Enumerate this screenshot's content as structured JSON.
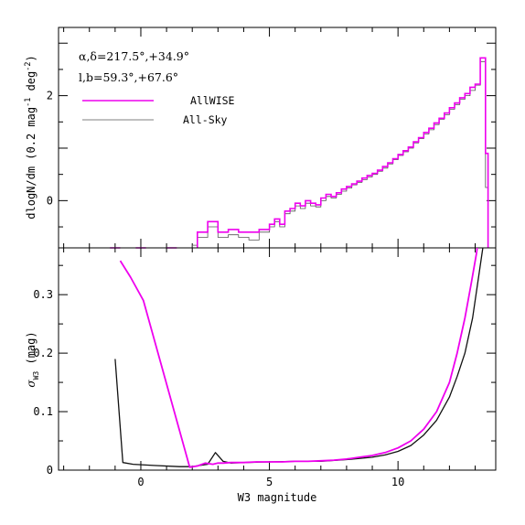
{
  "chart_data": [
    {
      "type": "line",
      "panel": "top",
      "step": true,
      "xlim": [
        -3.2,
        13.8
      ],
      "ylim": [
        -0.9,
        3.3
      ],
      "yticks_major": [
        0,
        2
      ],
      "ylabel_parts": [
        "dlogN/dm (0.2 mag",
        "-1",
        " deg",
        "-2",
        ")"
      ],
      "annotations": [
        "α,δ=217.5°,+34.9°",
        "l,b=59.3°,+67.6°"
      ],
      "legend": {
        "position": "top-left"
      },
      "series": [
        {
          "name": "AllWISE",
          "color": "#ee00ee",
          "bins": [
            [
              -1.2,
              -0.8,
              -0.9
            ],
            [
              -0.2,
              0.2,
              -0.9
            ],
            [
              1.0,
              1.4,
              -0.9
            ],
            [
              2.2,
              2.6,
              -0.6
            ],
            [
              2.6,
              3.0,
              -0.4
            ],
            [
              3.0,
              3.4,
              -0.6
            ],
            [
              3.4,
              3.8,
              -0.55
            ],
            [
              3.8,
              4.2,
              -0.6
            ],
            [
              4.2,
              4.6,
              -0.6
            ],
            [
              4.6,
              5.0,
              -0.55
            ],
            [
              5.0,
              5.2,
              -0.45
            ],
            [
              5.2,
              5.4,
              -0.35
            ],
            [
              5.4,
              5.6,
              -0.45
            ],
            [
              5.6,
              5.8,
              -0.2
            ],
            [
              5.8,
              6.0,
              -0.15
            ],
            [
              6.0,
              6.2,
              -0.05
            ],
            [
              6.2,
              6.4,
              -0.1
            ],
            [
              6.4,
              6.6,
              0.0
            ],
            [
              6.6,
              6.8,
              -0.05
            ],
            [
              6.8,
              7.0,
              -0.08
            ],
            [
              7.0,
              7.2,
              0.05
            ],
            [
              7.2,
              7.4,
              0.12
            ],
            [
              7.4,
              7.6,
              0.08
            ],
            [
              7.6,
              7.8,
              0.15
            ],
            [
              7.8,
              8.0,
              0.22
            ],
            [
              8.0,
              8.2,
              0.27
            ],
            [
              8.2,
              8.4,
              0.32
            ],
            [
              8.4,
              8.6,
              0.37
            ],
            [
              8.6,
              8.8,
              0.43
            ],
            [
              8.8,
              9.0,
              0.48
            ],
            [
              9.0,
              9.2,
              0.52
            ],
            [
              9.2,
              9.4,
              0.58
            ],
            [
              9.4,
              9.6,
              0.65
            ],
            [
              9.6,
              9.8,
              0.72
            ],
            [
              9.8,
              10.0,
              0.8
            ],
            [
              10.0,
              10.2,
              0.88
            ],
            [
              10.2,
              10.4,
              0.95
            ],
            [
              10.4,
              10.6,
              1.02
            ],
            [
              10.6,
              10.8,
              1.12
            ],
            [
              10.8,
              11.0,
              1.2
            ],
            [
              11.0,
              11.2,
              1.3
            ],
            [
              11.2,
              11.4,
              1.38
            ],
            [
              11.4,
              11.6,
              1.48
            ],
            [
              11.6,
              11.8,
              1.57
            ],
            [
              11.8,
              12.0,
              1.67
            ],
            [
              12.0,
              12.2,
              1.77
            ],
            [
              12.2,
              12.4,
              1.86
            ],
            [
              12.4,
              12.6,
              1.96
            ],
            [
              12.6,
              12.8,
              2.04
            ],
            [
              12.8,
              13.0,
              2.16
            ],
            [
              13.0,
              13.2,
              2.22
            ],
            [
              13.2,
              13.4,
              2.72
            ],
            [
              13.4,
              13.5,
              0.9
            ]
          ]
        },
        {
          "name": "All-Sky",
          "color": "#555555",
          "bins": [
            [
              -1.2,
              -0.8,
              -0.9
            ],
            [
              -0.2,
              0.2,
              -0.9
            ],
            [
              2.0,
              2.2,
              -0.85
            ],
            [
              2.2,
              2.6,
              -0.7
            ],
            [
              2.6,
              3.0,
              -0.5
            ],
            [
              3.0,
              3.4,
              -0.7
            ],
            [
              3.4,
              3.8,
              -0.65
            ],
            [
              3.8,
              4.2,
              -0.7
            ],
            [
              4.2,
              4.6,
              -0.75
            ],
            [
              4.6,
              5.0,
              -0.6
            ],
            [
              5.0,
              5.2,
              -0.5
            ],
            [
              5.2,
              5.4,
              -0.4
            ],
            [
              5.4,
              5.6,
              -0.5
            ],
            [
              5.6,
              5.8,
              -0.25
            ],
            [
              5.8,
              6.0,
              -0.2
            ],
            [
              6.0,
              6.2,
              -0.1
            ],
            [
              6.2,
              6.4,
              -0.15
            ],
            [
              6.4,
              6.6,
              -0.05
            ],
            [
              6.6,
              6.8,
              -0.1
            ],
            [
              6.8,
              7.0,
              -0.12
            ],
            [
              7.0,
              7.2,
              0.0
            ],
            [
              7.2,
              7.4,
              0.08
            ],
            [
              7.4,
              7.6,
              0.05
            ],
            [
              7.6,
              7.8,
              0.12
            ],
            [
              7.8,
              8.0,
              0.18
            ],
            [
              8.0,
              8.2,
              0.24
            ],
            [
              8.2,
              8.4,
              0.3
            ],
            [
              8.4,
              8.6,
              0.35
            ],
            [
              8.6,
              8.8,
              0.4
            ],
            [
              8.8,
              9.0,
              0.45
            ],
            [
              9.0,
              9.2,
              0.5
            ],
            [
              9.2,
              9.4,
              0.56
            ],
            [
              9.4,
              9.6,
              0.62
            ],
            [
              9.6,
              9.8,
              0.7
            ],
            [
              9.8,
              10.0,
              0.78
            ],
            [
              10.0,
              10.2,
              0.86
            ],
            [
              10.2,
              10.4,
              0.93
            ],
            [
              10.4,
              10.6,
              1.0
            ],
            [
              10.6,
              10.8,
              1.1
            ],
            [
              10.8,
              11.0,
              1.18
            ],
            [
              11.0,
              11.2,
              1.27
            ],
            [
              11.2,
              11.4,
              1.35
            ],
            [
              11.4,
              11.6,
              1.45
            ],
            [
              11.6,
              11.8,
              1.55
            ],
            [
              11.8,
              12.0,
              1.64
            ],
            [
              12.0,
              12.2,
              1.74
            ],
            [
              12.2,
              12.4,
              1.83
            ],
            [
              12.4,
              12.6,
              1.93
            ],
            [
              12.6,
              12.8,
              2.0
            ],
            [
              12.8,
              13.0,
              2.1
            ],
            [
              13.0,
              13.2,
              2.2
            ],
            [
              13.2,
              13.4,
              2.65
            ],
            [
              13.4,
              13.5,
              0.25
            ]
          ]
        }
      ]
    },
    {
      "type": "line",
      "panel": "bottom",
      "xlim": [
        -3.2,
        13.8
      ],
      "ylim": [
        0,
        0.38
      ],
      "xticks_major": [
        0,
        5,
        10
      ],
      "yticks_major": [
        0,
        0.1,
        0.2,
        0.3
      ],
      "xlabel": "W3 magnitude",
      "ylabel_parts": [
        "σ",
        "W3",
        " (mag)"
      ],
      "series": [
        {
          "name": "AllWISE",
          "color": "#ee00ee",
          "x": [
            -0.8,
            -0.4,
            0.1,
            1.9,
            2.2,
            2.5,
            2.8,
            3.0,
            3.2,
            3.5,
            4.0,
            4.5,
            5.0,
            5.5,
            6.0,
            6.5,
            7.0,
            7.5,
            8.0,
            8.5,
            9.0,
            9.5,
            10.0,
            10.5,
            11.0,
            11.5,
            12.0,
            12.3,
            12.6,
            12.85,
            13.05,
            13.2
          ],
          "y": [
            0.358,
            0.33,
            0.29,
            0.005,
            0.007,
            0.012,
            0.01,
            0.012,
            0.012,
            0.013,
            0.013,
            0.014,
            0.014,
            0.014,
            0.015,
            0.015,
            0.016,
            0.017,
            0.019,
            0.022,
            0.025,
            0.03,
            0.038,
            0.05,
            0.07,
            0.1,
            0.15,
            0.2,
            0.26,
            0.32,
            0.37,
            0.42
          ]
        },
        {
          "name": "All-Sky",
          "color": "#111111",
          "x": [
            -1.0,
            -0.7,
            -0.3,
            0.5,
            1.5,
            2.0,
            2.3,
            2.6,
            2.9,
            3.2,
            3.5,
            4.0,
            5.0,
            6.0,
            7.0,
            8.0,
            8.5,
            9.0,
            9.5,
            10.0,
            10.5,
            11.0,
            11.5,
            12.0,
            12.3,
            12.6,
            12.9,
            13.1,
            13.3
          ],
          "y": [
            0.19,
            0.013,
            0.01,
            0.008,
            0.006,
            0.006,
            0.008,
            0.01,
            0.03,
            0.015,
            0.012,
            0.013,
            0.014,
            0.015,
            0.015,
            0.018,
            0.02,
            0.022,
            0.026,
            0.032,
            0.042,
            0.06,
            0.085,
            0.125,
            0.16,
            0.2,
            0.26,
            0.32,
            0.38
          ]
        }
      ]
    }
  ]
}
